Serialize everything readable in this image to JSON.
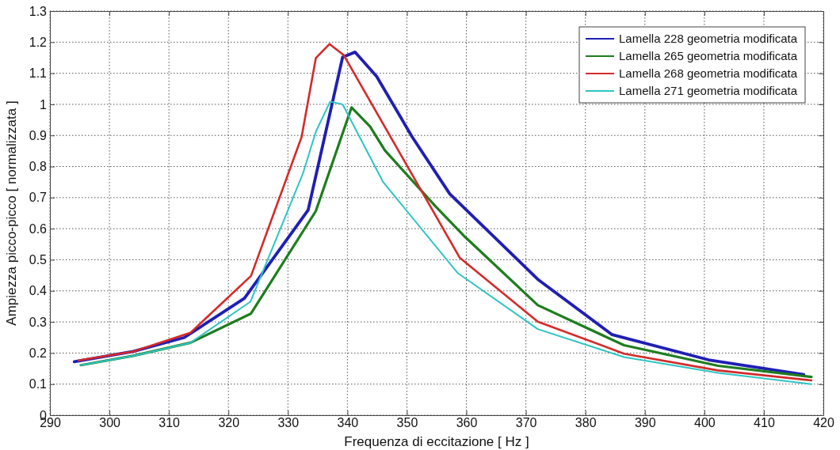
{
  "chart_data": {
    "type": "line",
    "xlabel": "Frequenza di eccitazione [ Hz ]",
    "ylabel": "Ampiezza picco-picco [ normalizzata ]",
    "xlim": [
      290,
      420
    ],
    "xticks": [
      290,
      300,
      310,
      320,
      330,
      340,
      350,
      360,
      370,
      380,
      390,
      400,
      410,
      420
    ],
    "ylim": [
      0,
      1.3
    ],
    "yticks": [
      0,
      0.1,
      0.2,
      0.3,
      0.4,
      0.5,
      0.6,
      0.7,
      0.8,
      0.9,
      1,
      1.1,
      1.2,
      1.3
    ],
    "grid": true,
    "legend": "top right",
    "line_style": "solid",
    "marker": "none",
    "series": [
      {
        "name": "Lamella 228 geometria modificata",
        "color": "#1f1fb4",
        "x": [
          294.1,
          304,
          312.6,
          322.7,
          333.4,
          339.2,
          341.3,
          344.9,
          350.9,
          357.2,
          372,
          384.5,
          400.7,
          416.7
        ],
        "values": [
          0.172,
          0.205,
          0.25,
          0.376,
          0.66,
          1.152,
          1.168,
          1.09,
          0.895,
          0.712,
          0.437,
          0.259,
          0.178,
          0.131
        ]
      },
      {
        "name": "Lamella 265 geometria modificata",
        "color": "#1e7d1e",
        "x": [
          295.2,
          304,
          313.6,
          323.8,
          334.7,
          340.7,
          343.8,
          346.3,
          354.9,
          359.8,
          372,
          386.5,
          402.3,
          418
        ],
        "values": [
          0.161,
          0.191,
          0.233,
          0.327,
          0.657,
          0.99,
          0.929,
          0.852,
          0.67,
          0.573,
          0.354,
          0.225,
          0.159,
          0.123
        ]
      },
      {
        "name": "Lamella 268 geometria modificata",
        "color": "#d42a2a",
        "x": [
          294.8,
          304,
          313.6,
          323.8,
          332.3,
          334.7,
          337,
          339.4,
          358.9,
          372,
          386.5,
          402.3,
          418
        ],
        "values": [
          0.176,
          0.205,
          0.265,
          0.448,
          0.895,
          1.149,
          1.194,
          1.158,
          0.506,
          0.301,
          0.198,
          0.144,
          0.112
        ]
      },
      {
        "name": "Lamella 271 geometria modificata",
        "color": "#2ec4c4",
        "x": [
          295.2,
          304,
          313.6,
          323.7,
          332.5,
          334.7,
          337.1,
          339.2,
          346,
          358.5,
          372,
          386.5,
          402.3,
          418
        ],
        "values": [
          0.161,
          0.191,
          0.233,
          0.365,
          0.776,
          0.912,
          1.009,
          1.0,
          0.75,
          0.458,
          0.277,
          0.187,
          0.136,
          0.1
        ]
      }
    ]
  }
}
